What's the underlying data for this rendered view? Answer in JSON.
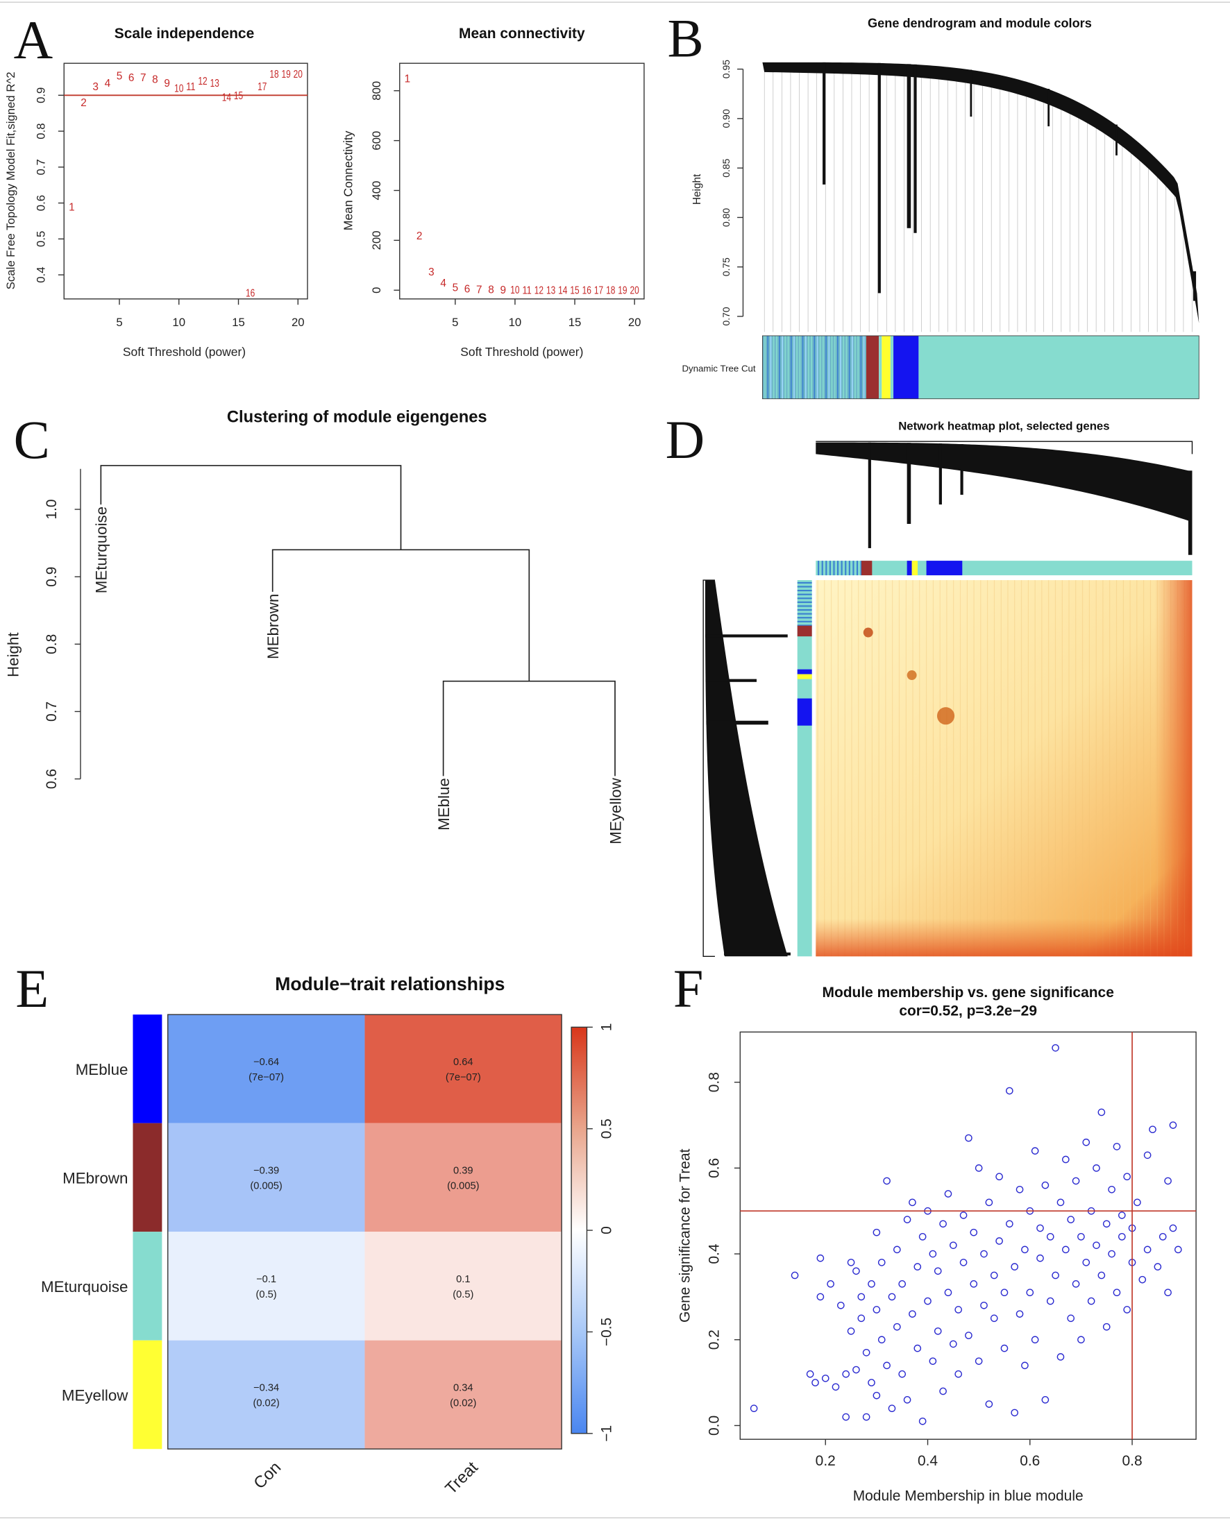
{
  "panel_labels": [
    "A",
    "B",
    "C",
    "D",
    "E",
    "F"
  ],
  "chart_data": [
    {
      "type": "scatter",
      "title": "Scale independence",
      "xlabel": "Soft Threshold (power)",
      "ylabel": "Scale Free Topology Model Fit,signed R^2",
      "x": [
        1,
        2,
        3,
        4,
        5,
        6,
        7,
        8,
        9,
        10,
        11,
        12,
        13,
        14,
        15,
        16,
        17,
        18,
        19,
        20
      ],
      "values": [
        0.59,
        0.88,
        0.925,
        0.935,
        0.955,
        0.95,
        0.95,
        0.945,
        0.935,
        0.92,
        0.925,
        0.94,
        0.935,
        0.895,
        0.9,
        0.35,
        0.925,
        0.96,
        0.96,
        0.96
      ],
      "hline": 0.9,
      "xticks": [
        "5",
        "10",
        "15",
        "20"
      ],
      "yticks": [
        "0.4",
        "0.5",
        "0.6",
        "0.7",
        "0.8",
        "0.9"
      ],
      "xlim": [
        0.35,
        20.8
      ],
      "ylim": [
        0.333,
        0.989
      ]
    },
    {
      "type": "scatter",
      "title": "Mean connectivity",
      "xlabel": "Soft Threshold (power)",
      "ylabel": "Mean Connectivity",
      "x": [
        1,
        2,
        3,
        4,
        5,
        6,
        7,
        8,
        9,
        10,
        11,
        12,
        13,
        14,
        15,
        16,
        17,
        18,
        19,
        20
      ],
      "values": [
        850,
        220,
        75,
        30,
        12,
        6,
        4,
        3,
        2,
        2,
        1,
        1,
        1,
        1,
        1,
        1,
        1,
        1,
        1,
        1
      ],
      "xticks": [
        "5",
        "10",
        "15",
        "20"
      ],
      "yticks": [
        "0",
        "200",
        "400",
        "600",
        "800"
      ],
      "xlim": [
        0.35,
        20.8
      ],
      "ylim": [
        -35,
        910
      ]
    },
    {
      "type": "dendrogram",
      "title": "Gene dendrogram and module colors",
      "ylabel": "Height",
      "yticks": [
        "0.70",
        "0.75",
        "0.80",
        "0.85",
        "0.90",
        "0.95"
      ],
      "ylim": [
        0.7,
        0.965
      ],
      "colorbar_label": "Dynamic Tree Cut",
      "modules": [
        {
          "name": "turquoise",
          "color": "#86dccf"
        },
        {
          "name": "brown",
          "color": "#9b2f2f"
        },
        {
          "name": "yellow",
          "color": "#ffff2e"
        },
        {
          "name": "blue",
          "color": "#1414f0"
        }
      ]
    },
    {
      "type": "dendrogram",
      "title": "Clustering of module eigengenes",
      "ylabel": "Height",
      "yticks": [
        "0.6",
        "0.7",
        "0.8",
        "0.9",
        "1.0"
      ],
      "ylim": [
        0.6,
        1.06
      ],
      "leaves": [
        "MEturquoise",
        "MEbrown",
        "MEblue",
        "MEyellow"
      ],
      "merges": [
        {
          "pair": [
            "MEblue",
            "MEyellow"
          ],
          "height": 0.745
        },
        {
          "pair": [
            "MEbrown",
            "MEblue+MEyellow"
          ],
          "height": 0.94
        },
        {
          "pair": [
            "MEturquoise",
            "rest"
          ],
          "height": 1.065
        }
      ]
    },
    {
      "type": "heatmap",
      "title": "Network heatmap plot, selected genes"
    },
    {
      "type": "heatmap",
      "title": "Module−trait relationships",
      "rows": [
        "MEblue",
        "MEbrown",
        "MEturquoise",
        "MEyellow"
      ],
      "row_colors": [
        "#0000ff",
        "#8b2b2b",
        "#86dccf",
        "#ffff33"
      ],
      "columns": [
        "Con",
        "Treat"
      ],
      "values": [
        [
          -0.64,
          0.64
        ],
        [
          -0.39,
          0.39
        ],
        [
          -0.1,
          0.1
        ],
        [
          -0.34,
          0.34
        ]
      ],
      "pvalues": [
        [
          "(7e−07)",
          "(7e−07)"
        ],
        [
          "(0.005)",
          "(0.005)"
        ],
        [
          "(0.5)",
          "(0.5)"
        ],
        [
          "(0.02)",
          "(0.02)"
        ]
      ],
      "value_labels": [
        [
          "−0.64",
          "0.64"
        ],
        [
          "−0.39",
          "0.39"
        ],
        [
          "−0.1",
          "0.1"
        ],
        [
          "−0.34",
          "0.34"
        ]
      ],
      "colorbar_ticks": [
        "−1",
        "−0.5",
        "0",
        "0.5",
        "1"
      ],
      "zlim": [
        -1,
        1
      ]
    },
    {
      "type": "scatter",
      "title": "Module membership vs. gene significance",
      "subtitle": "cor=0.52, p=3.2e−29",
      "xlabel": "Module Membership in blue module",
      "ylabel": "Gene significance for  Treat",
      "xticks": [
        "0.2",
        "0.4",
        "0.6",
        "0.8"
      ],
      "yticks": [
        "0.0",
        "0.2",
        "0.4",
        "0.6",
        "0.8"
      ],
      "xlim": [
        0.033,
        0.925
      ],
      "ylim": [
        -0.032,
        0.917
      ],
      "vline": 0.8,
      "hline": 0.5,
      "points": [
        [
          0.06,
          0.04
        ],
        [
          0.14,
          0.35
        ],
        [
          0.17,
          0.12
        ],
        [
          0.18,
          0.1
        ],
        [
          0.19,
          0.39
        ],
        [
          0.19,
          0.3
        ],
        [
          0.2,
          0.11
        ],
        [
          0.21,
          0.33
        ],
        [
          0.22,
          0.09
        ],
        [
          0.23,
          0.28
        ],
        [
          0.24,
          0.02
        ],
        [
          0.24,
          0.12
        ],
        [
          0.25,
          0.38
        ],
        [
          0.25,
          0.22
        ],
        [
          0.26,
          0.36
        ],
        [
          0.26,
          0.13
        ],
        [
          0.27,
          0.25
        ],
        [
          0.27,
          0.3
        ],
        [
          0.28,
          0.02
        ],
        [
          0.28,
          0.17
        ],
        [
          0.29,
          0.33
        ],
        [
          0.29,
          0.1
        ],
        [
          0.3,
          0.45
        ],
        [
          0.3,
          0.27
        ],
        [
          0.3,
          0.07
        ],
        [
          0.31,
          0.2
        ],
        [
          0.31,
          0.38
        ],
        [
          0.32,
          0.57
        ],
        [
          0.32,
          0.14
        ],
        [
          0.33,
          0.3
        ],
        [
          0.33,
          0.04
        ],
        [
          0.34,
          0.23
        ],
        [
          0.34,
          0.41
        ],
        [
          0.35,
          0.12
        ],
        [
          0.35,
          0.33
        ],
        [
          0.36,
          0.48
        ],
        [
          0.36,
          0.06
        ],
        [
          0.37,
          0.26
        ],
        [
          0.37,
          0.52
        ],
        [
          0.38,
          0.18
        ],
        [
          0.38,
          0.37
        ],
        [
          0.39,
          0.01
        ],
        [
          0.39,
          0.44
        ],
        [
          0.4,
          0.29
        ],
        [
          0.4,
          0.5
        ],
        [
          0.41,
          0.15
        ],
        [
          0.41,
          0.4
        ],
        [
          0.42,
          0.22
        ],
        [
          0.42,
          0.36
        ],
        [
          0.43,
          0.47
        ],
        [
          0.43,
          0.08
        ],
        [
          0.44,
          0.31
        ],
        [
          0.44,
          0.54
        ],
        [
          0.45,
          0.19
        ],
        [
          0.45,
          0.42
        ],
        [
          0.46,
          0.27
        ],
        [
          0.46,
          0.12
        ],
        [
          0.47,
          0.38
        ],
        [
          0.47,
          0.49
        ],
        [
          0.48,
          0.21
        ],
        [
          0.48,
          0.67
        ],
        [
          0.49,
          0.33
        ],
        [
          0.49,
          0.45
        ],
        [
          0.5,
          0.15
        ],
        [
          0.5,
          0.6
        ],
        [
          0.51,
          0.28
        ],
        [
          0.51,
          0.4
        ],
        [
          0.52,
          0.05
        ],
        [
          0.52,
          0.52
        ],
        [
          0.53,
          0.35
        ],
        [
          0.53,
          0.25
        ],
        [
          0.54,
          0.58
        ],
        [
          0.54,
          0.43
        ],
        [
          0.55,
          0.18
        ],
        [
          0.55,
          0.31
        ],
        [
          0.56,
          0.47
        ],
        [
          0.56,
          0.78
        ],
        [
          0.57,
          0.37
        ],
        [
          0.57,
          0.03
        ],
        [
          0.58,
          0.55
        ],
        [
          0.58,
          0.26
        ],
        [
          0.59,
          0.41
        ],
        [
          0.59,
          0.14
        ],
        [
          0.6,
          0.5
        ],
        [
          0.6,
          0.31
        ],
        [
          0.61,
          0.64
        ],
        [
          0.61,
          0.2
        ],
        [
          0.62,
          0.39
        ],
        [
          0.62,
          0.46
        ],
        [
          0.63,
          0.06
        ],
        [
          0.63,
          0.56
        ],
        [
          0.64,
          0.29
        ],
        [
          0.64,
          0.44
        ],
        [
          0.65,
          0.88
        ],
        [
          0.65,
          0.35
        ],
        [
          0.66,
          0.52
        ],
        [
          0.66,
          0.16
        ],
        [
          0.67,
          0.62
        ],
        [
          0.67,
          0.41
        ],
        [
          0.68,
          0.25
        ],
        [
          0.68,
          0.48
        ],
        [
          0.69,
          0.33
        ],
        [
          0.69,
          0.57
        ],
        [
          0.7,
          0.44
        ],
        [
          0.7,
          0.2
        ],
        [
          0.71,
          0.66
        ],
        [
          0.71,
          0.38
        ],
        [
          0.72,
          0.5
        ],
        [
          0.72,
          0.29
        ],
        [
          0.73,
          0.6
        ],
        [
          0.73,
          0.42
        ],
        [
          0.74,
          0.73
        ],
        [
          0.74,
          0.35
        ],
        [
          0.75,
          0.47
        ],
        [
          0.75,
          0.23
        ],
        [
          0.76,
          0.55
        ],
        [
          0.76,
          0.4
        ],
        [
          0.77,
          0.65
        ],
        [
          0.77,
          0.31
        ],
        [
          0.78,
          0.49
        ],
        [
          0.78,
          0.44
        ],
        [
          0.79,
          0.58
        ],
        [
          0.79,
          0.27
        ],
        [
          0.8,
          0.46
        ],
        [
          0.8,
          0.38
        ],
        [
          0.81,
          0.52
        ],
        [
          0.82,
          0.34
        ],
        [
          0.83,
          0.63
        ],
        [
          0.83,
          0.41
        ],
        [
          0.84,
          0.69
        ],
        [
          0.85,
          0.37
        ],
        [
          0.86,
          0.44
        ],
        [
          0.87,
          0.31
        ],
        [
          0.87,
          0.57
        ],
        [
          0.88,
          0.7
        ],
        [
          0.88,
          0.46
        ],
        [
          0.89,
          0.41
        ]
      ]
    }
  ],
  "colors": {
    "points_red": "#c62828",
    "points_blue": "#2a2ad0",
    "refline": "#c0392b"
  }
}
